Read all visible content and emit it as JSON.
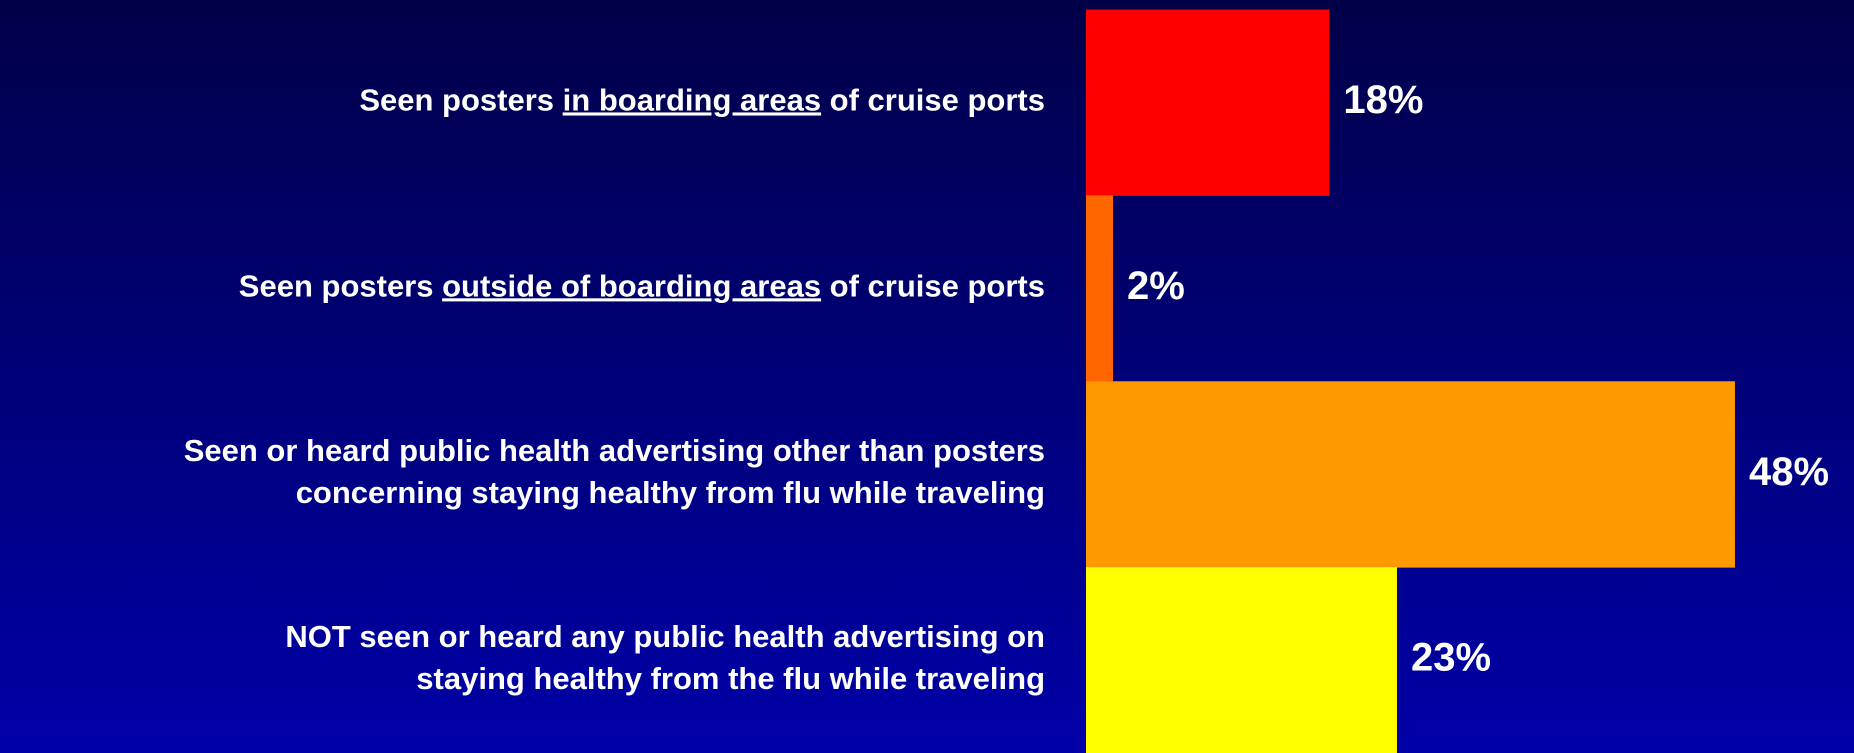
{
  "chart_data": {
    "type": "bar",
    "orientation": "horizontal",
    "categories": [
      [
        [
          {
            "text": "Seen posters "
          },
          {
            "text": "in boarding areas",
            "underline": true
          },
          {
            "text": " of cruise ports"
          }
        ]
      ],
      [
        [
          {
            "text": "Seen posters "
          },
          {
            "text": "outside of boarding areas",
            "underline": true
          },
          {
            "text": " of cruise ports"
          }
        ]
      ],
      [
        [
          {
            "text": "Seen or heard public health advertising other than posters"
          }
        ],
        [
          {
            "text": "concerning staying healthy from flu while traveling"
          }
        ]
      ],
      [
        [
          {
            "text": "NOT seen or heard any public health advertising on"
          }
        ],
        [
          {
            "text": "staying healthy from the flu while traveling"
          }
        ]
      ]
    ],
    "values": [
      18,
      2,
      48,
      23
    ],
    "value_labels": [
      "18%",
      "2%",
      "48%",
      "23%"
    ],
    "colors": [
      "#ff0000",
      "#ff6600",
      "#ff9900",
      "#ffff00"
    ]
  }
}
